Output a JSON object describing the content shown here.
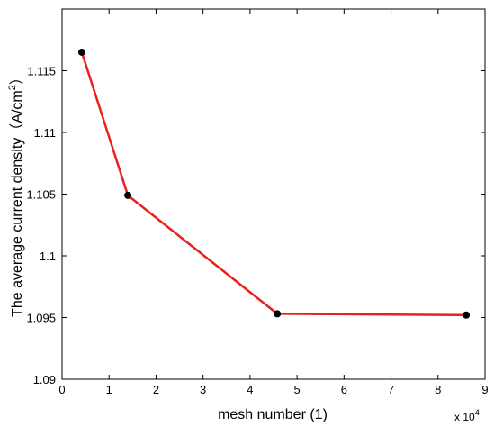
{
  "chart_data": {
    "type": "line",
    "title": "",
    "xlabel": "mesh number (1)",
    "ylabel": "The average current density",
    "ylabel_unit": "（A/cm",
    "ylabel_unit_exp": "2",
    "ylabel_unit_close": "）",
    "x_multiplier": "x 10",
    "x_multiplier_exp": "4",
    "xlim": [
      0,
      9
    ],
    "ylim": [
      1.09,
      1.12
    ],
    "xticks": [
      "0",
      "1",
      "2",
      "3",
      "4",
      "5",
      "6",
      "7",
      "8",
      "9"
    ],
    "yticks": [
      "1.09",
      "1.095",
      "1.1",
      "1.105",
      "1.11",
      "1.115"
    ],
    "ytick_values": [
      1.09,
      1.095,
      1.1,
      1.105,
      1.11,
      1.115
    ],
    "grid": false,
    "series": [
      {
        "color": "#e8211c",
        "marker_color": "#000000",
        "x": [
          0.42,
          1.4,
          4.58,
          8.6
        ],
        "y": [
          1.1165,
          1.1049,
          1.0953,
          1.0952
        ]
      }
    ]
  }
}
